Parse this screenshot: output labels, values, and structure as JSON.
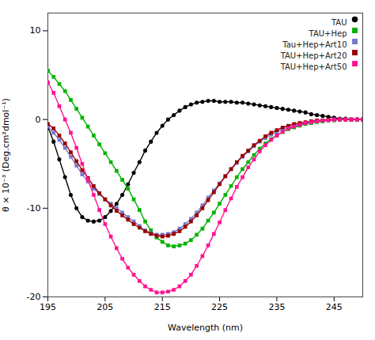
{
  "chart_data": {
    "type": "line",
    "xlabel": "Wavelength (nm)",
    "ylabel": "θ × 10⁻³ (Deg.cm²dmol⁻¹)",
    "xlim": [
      195,
      250
    ],
    "ylim": [
      -20,
      12
    ],
    "xticks": [
      195,
      205,
      215,
      225,
      235,
      245
    ],
    "yticks": [
      -20,
      -10,
      0,
      10
    ],
    "legend": "upper right",
    "x": [
      195,
      196,
      197,
      198,
      199,
      200,
      201,
      202,
      203,
      204,
      205,
      206,
      207,
      208,
      209,
      210,
      211,
      212,
      213,
      214,
      215,
      216,
      217,
      218,
      219,
      220,
      221,
      222,
      223,
      224,
      225,
      226,
      227,
      228,
      229,
      230,
      231,
      232,
      233,
      234,
      235,
      236,
      237,
      238,
      239,
      240,
      241,
      242,
      243,
      244,
      245,
      246,
      247,
      248,
      249,
      250
    ],
    "series": [
      {
        "name": "TAU",
        "color": "#000000",
        "marker": "circle",
        "values": [
          -0.8,
          -2.5,
          -4.5,
          -6.5,
          -8.5,
          -10.0,
          -11.0,
          -11.4,
          -11.5,
          -11.4,
          -11.0,
          -10.3,
          -9.5,
          -8.5,
          -7.3,
          -6.0,
          -4.8,
          -3.5,
          -2.5,
          -1.5,
          -0.7,
          -0.0,
          0.5,
          1.0,
          1.4,
          1.7,
          1.9,
          2.0,
          2.1,
          2.1,
          2.0,
          2.0,
          2.0,
          1.9,
          1.9,
          1.8,
          1.7,
          1.6,
          1.5,
          1.4,
          1.3,
          1.2,
          1.1,
          1.0,
          0.9,
          0.8,
          0.6,
          0.5,
          0.4,
          0.3,
          0.2,
          0.1,
          0.1,
          0.0,
          0.0,
          0.0
        ]
      },
      {
        "name": "TAU+Hep",
        "color": "#00b300",
        "marker": "square",
        "values": [
          5.5,
          4.8,
          4.0,
          3.2,
          2.2,
          1.2,
          0.2,
          -0.8,
          -1.8,
          -2.8,
          -3.8,
          -4.8,
          -5.8,
          -6.8,
          -7.8,
          -9.0,
          -10.2,
          -11.5,
          -12.5,
          -13.3,
          -13.8,
          -14.2,
          -14.3,
          -14.2,
          -14.0,
          -13.6,
          -13.0,
          -12.3,
          -11.4,
          -10.5,
          -9.5,
          -8.5,
          -7.5,
          -6.5,
          -5.6,
          -4.8,
          -4.0,
          -3.3,
          -2.7,
          -2.2,
          -1.8,
          -1.4,
          -1.1,
          -0.9,
          -0.7,
          -0.5,
          -0.4,
          -0.3,
          -0.2,
          -0.1,
          -0.1,
          0.0,
          0.0,
          0.0,
          0.0,
          0.0
        ]
      },
      {
        "name": "Tau+Hep+Art10",
        "color": "#7777cc",
        "marker": "square",
        "values": [
          -0.8,
          -1.5,
          -2.3,
          -3.2,
          -4.2,
          -5.2,
          -6.2,
          -7.0,
          -7.8,
          -8.4,
          -9.0,
          -9.5,
          -10.0,
          -10.5,
          -11.0,
          -11.5,
          -12.0,
          -12.5,
          -12.8,
          -13.0,
          -13.0,
          -12.9,
          -12.7,
          -12.3,
          -11.8,
          -11.2,
          -10.5,
          -9.7,
          -8.8,
          -8.0,
          -7.2,
          -6.4,
          -5.6,
          -4.9,
          -4.2,
          -3.6,
          -3.0,
          -2.5,
          -2.1,
          -1.7,
          -1.4,
          -1.1,
          -0.9,
          -0.7,
          -0.5,
          -0.4,
          -0.3,
          -0.2,
          -0.1,
          -0.1,
          0.0,
          0.0,
          0.0,
          0.0,
          0.0,
          0.0
        ]
      },
      {
        "name": "TAU+Hep+Art20",
        "color": "#990000",
        "marker": "square",
        "values": [
          -0.5,
          -1.0,
          -1.8,
          -2.7,
          -3.7,
          -4.7,
          -5.7,
          -6.6,
          -7.5,
          -8.3,
          -9.0,
          -9.7,
          -10.3,
          -10.8,
          -11.3,
          -11.8,
          -12.2,
          -12.6,
          -12.9,
          -13.1,
          -13.2,
          -13.1,
          -12.9,
          -12.6,
          -12.1,
          -11.5,
          -10.8,
          -10.0,
          -9.1,
          -8.2,
          -7.3,
          -6.4,
          -5.6,
          -4.8,
          -4.1,
          -3.5,
          -2.9,
          -2.4,
          -1.9,
          -1.5,
          -1.2,
          -0.9,
          -0.7,
          -0.5,
          -0.4,
          -0.3,
          -0.2,
          -0.1,
          -0.1,
          0.0,
          0.0,
          0.0,
          0.0,
          0.0,
          0.0,
          0.0
        ]
      },
      {
        "name": "TAU+Hep+Art50",
        "color": "#ff1493",
        "marker": "square",
        "values": [
          4.2,
          3.0,
          1.5,
          0.0,
          -1.5,
          -3.2,
          -5.0,
          -6.8,
          -8.5,
          -10.2,
          -11.8,
          -13.2,
          -14.5,
          -15.7,
          -16.7,
          -17.5,
          -18.2,
          -18.8,
          -19.2,
          -19.5,
          -19.5,
          -19.4,
          -19.2,
          -18.8,
          -18.2,
          -17.5,
          -16.5,
          -15.4,
          -14.2,
          -12.9,
          -11.6,
          -10.2,
          -8.9,
          -7.6,
          -6.5,
          -5.4,
          -4.5,
          -3.6,
          -2.9,
          -2.3,
          -1.8,
          -1.4,
          -1.0,
          -0.8,
          -0.6,
          -0.4,
          -0.3,
          -0.2,
          -0.1,
          -0.1,
          0.0,
          0.0,
          0.0,
          0.0,
          0.0,
          0.0
        ]
      }
    ]
  }
}
